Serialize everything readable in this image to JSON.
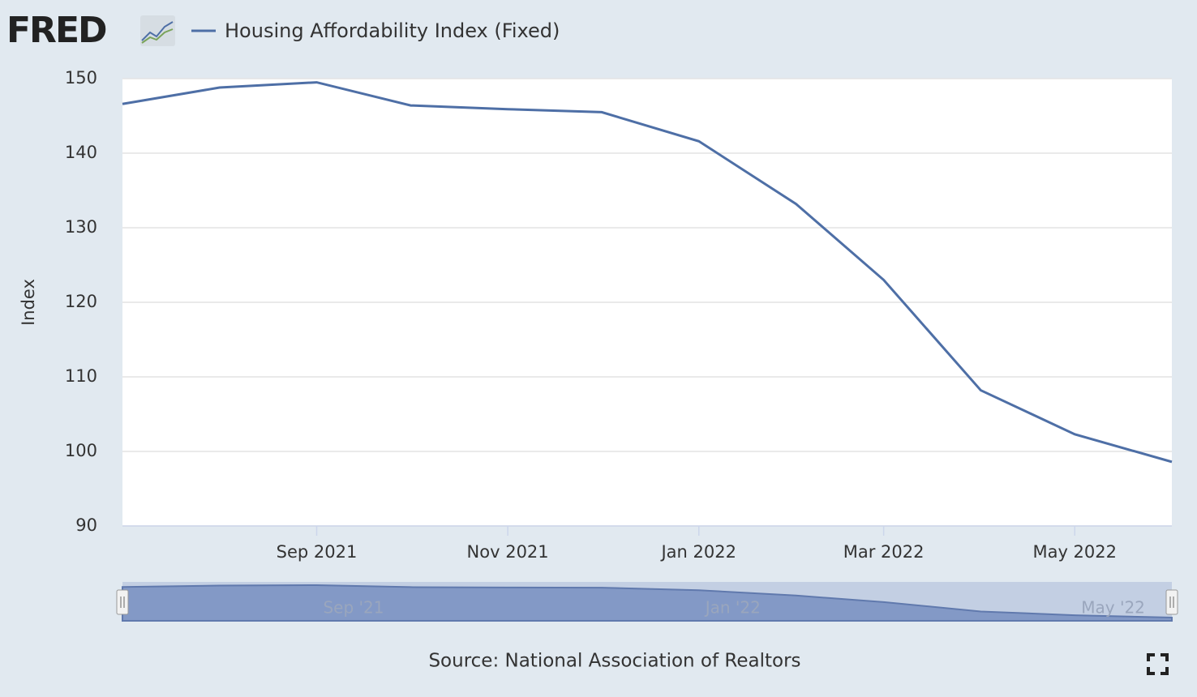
{
  "chart_data": {
    "type": "line",
    "logo": "FRED",
    "title": "Housing Affordability Index (Fixed)",
    "y_label": "Index",
    "source": "Source: National Association of Realtors",
    "x": [
      "2021-07",
      "2021-08",
      "2021-09",
      "2021-10",
      "2021-11",
      "2021-12",
      "2022-01",
      "2022-02",
      "2022-03",
      "2022-04",
      "2022-05",
      "2022-06"
    ],
    "series": [
      {
        "name": "Housing Affordability Index (Fixed)",
        "color": "#4e6fa6",
        "values": [
          146.6,
          148.8,
          149.5,
          146.4,
          145.9,
          145.5,
          141.6,
          133.2,
          123.0,
          108.2,
          102.3,
          98.6
        ]
      }
    ],
    "xlim": [
      "2021-07",
      "2022-06"
    ],
    "xticks": [
      {
        "value": "2021-09",
        "label": "Sep 2021"
      },
      {
        "value": "2021-11",
        "label": "Nov 2021"
      },
      {
        "value": "2022-01",
        "label": "Jan 2022"
      },
      {
        "value": "2022-03",
        "label": "Mar 2022"
      },
      {
        "value": "2022-05",
        "label": "May 2022"
      }
    ],
    "ylim": [
      90,
      150
    ],
    "yticks": [
      90,
      100,
      110,
      120,
      130,
      140,
      150
    ],
    "grid": true,
    "navigator_ticks": [
      {
        "value": "2021-09",
        "label": "Sep '21"
      },
      {
        "value": "2022-01",
        "label": "Jan '22"
      },
      {
        "value": "2022-05",
        "label": "May '22"
      }
    ]
  }
}
